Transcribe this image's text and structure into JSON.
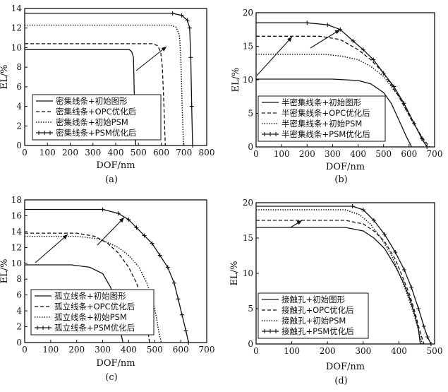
{
  "figure": {
    "background": "#ffffff",
    "ink": "#111111"
  },
  "chart_data": [
    {
      "type": "line",
      "panel_label": "(a)",
      "xlabel": "DOF/nm",
      "ylabel": "EL/%",
      "xlim": [
        0,
        800
      ],
      "ylim": [
        0,
        14
      ],
      "xticks": [
        0,
        100,
        200,
        300,
        400,
        500,
        600,
        700,
        800
      ],
      "yticks": [
        0,
        2,
        4,
        6,
        8,
        10,
        12,
        14
      ],
      "legend_position": "bottom-right",
      "series": [
        {
          "name": "密集线条+初始图形",
          "style": "solid",
          "marker": "none",
          "x": [
            0,
            460,
            470,
            478,
            482,
            488
          ],
          "y": [
            9.8,
            9.8,
            9.6,
            9.0,
            5.0,
            0
          ]
        },
        {
          "name": "密集线条+OPC优化后",
          "style": "dashed",
          "marker": "none",
          "x": [
            0,
            560,
            585,
            598,
            605,
            612,
            618
          ],
          "y": [
            10.4,
            10.4,
            10.2,
            9.5,
            8.0,
            4.0,
            0
          ]
        },
        {
          "name": "密集线条+初始PSM",
          "style": "dotted",
          "marker": "none",
          "x": [
            0,
            640,
            665,
            680,
            686,
            692,
            698
          ],
          "y": [
            12.3,
            12.3,
            12.1,
            11.3,
            9.0,
            4.0,
            0
          ]
        },
        {
          "name": "密集线条+PSM优化后",
          "style": "solid",
          "marker": "tick",
          "x": [
            0,
            650,
            690,
            715,
            725,
            730,
            734,
            738
          ],
          "y": [
            13.5,
            13.5,
            13.3,
            12.8,
            12.0,
            9.0,
            4.0,
            0
          ]
        }
      ]
    },
    {
      "type": "line",
      "panel_label": "(b)",
      "xlabel": "DOF/nm",
      "ylabel": "EL/%",
      "xlim": [
        0,
        700
      ],
      "ylim": [
        0,
        20
      ],
      "xticks": [
        0,
        100,
        200,
        300,
        400,
        500,
        600,
        700
      ],
      "yticks": [
        0,
        5,
        10,
        15,
        20
      ],
      "legend_position": "bottom-left",
      "series": [
        {
          "name": "半密集线条+初始图形",
          "style": "solid",
          "marker": "none",
          "x": [
            0,
            300,
            400,
            450,
            500,
            530,
            560,
            590,
            610
          ],
          "y": [
            10.1,
            10.1,
            9.9,
            9.4,
            8.1,
            6.5,
            4.0,
            1.5,
            0
          ]
        },
        {
          "name": "半密集线条+OPC优化后",
          "style": "dashed",
          "marker": "none",
          "x": [
            0,
            250,
            330,
            400,
            450,
            500,
            560,
            610,
            650,
            680
          ],
          "y": [
            16.5,
            16.5,
            16.0,
            14.5,
            13.0,
            11.0,
            7.5,
            4.0,
            1.5,
            0
          ]
        },
        {
          "name": "半密集线条+初始PSM",
          "style": "dotted",
          "marker": "none",
          "x": [
            0,
            270,
            340,
            400,
            450,
            500,
            560,
            610,
            650,
            670
          ],
          "y": [
            13.8,
            13.8,
            13.5,
            13.0,
            12.0,
            10.5,
            7.5,
            4.0,
            1.5,
            0
          ]
        },
        {
          "name": "半密集线条+PSM优化后",
          "style": "solid",
          "marker": "plus",
          "x": [
            0,
            200,
            280,
            330,
            380,
            420,
            460,
            500,
            540,
            580,
            620,
            650,
            670
          ],
          "y": [
            18.5,
            18.5,
            18.2,
            17.5,
            15.8,
            14.5,
            13.0,
            11.0,
            9.0,
            6.5,
            3.5,
            1.2,
            0
          ]
        }
      ]
    },
    {
      "type": "line",
      "panel_label": "(c)",
      "xlabel": "DOF/nm",
      "ylabel": "EL/%",
      "xlim": [
        0,
        700
      ],
      "ylim": [
        0,
        18
      ],
      "xticks": [
        0,
        100,
        200,
        300,
        400,
        500,
        600,
        700
      ],
      "yticks": [
        0,
        2,
        4,
        6,
        8,
        10,
        12,
        14,
        16,
        18
      ],
      "legend_position": "bottom-left",
      "series": [
        {
          "name": "孤立线条+初始图形",
          "style": "solid",
          "marker": "none",
          "x": [
            0,
            180,
            250,
            300,
            330,
            345,
            358,
            368,
            378
          ],
          "y": [
            9.8,
            9.8,
            9.5,
            8.7,
            7.0,
            5.5,
            3.5,
            1.5,
            0
          ]
        },
        {
          "name": "孤立线条+OPC优化后",
          "style": "dashed",
          "marker": "none",
          "x": [
            0,
            200,
            270,
            320,
            360,
            400,
            430,
            455,
            470,
            480
          ],
          "y": [
            13.8,
            13.8,
            13.4,
            12.5,
            11.3,
            9.5,
            7.5,
            5.0,
            2.5,
            0
          ]
        },
        {
          "name": "孤立线条+初始PSM",
          "style": "dotted",
          "marker": "none",
          "x": [
            0,
            200,
            280,
            320,
            360,
            400,
            440,
            470,
            490,
            505,
            515,
            525
          ],
          "y": [
            13.4,
            13.4,
            13.1,
            12.6,
            12.0,
            11.0,
            9.5,
            7.5,
            5.5,
            3.5,
            1.5,
            0
          ]
        },
        {
          "name": "孤立线条+PSM优化后",
          "style": "solid",
          "marker": "plus",
          "x": [
            0,
            300,
            360,
            400,
            430,
            460,
            490,
            520,
            550,
            575,
            590,
            605,
            620,
            630
          ],
          "y": [
            16.8,
            16.8,
            16.3,
            15.5,
            14.5,
            13.5,
            12.5,
            11.0,
            9.5,
            7.5,
            5.5,
            3.5,
            1.5,
            0
          ]
        }
      ]
    },
    {
      "type": "line",
      "panel_label": "(d)",
      "xlabel": "DOF/nm",
      "ylabel": "EL/%",
      "xlim": [
        0,
        500
      ],
      "ylim": [
        0,
        20
      ],
      "xticks": [
        0,
        100,
        200,
        300,
        400,
        500
      ],
      "yticks": [
        0,
        5,
        10,
        15,
        20
      ],
      "legend_position": "bottom-left",
      "series": [
        {
          "name": "接触孔+初始图形",
          "style": "solid",
          "marker": "none",
          "x": [
            0,
            250,
            300,
            330,
            360,
            390,
            410,
            430,
            445,
            455,
            460
          ],
          "y": [
            16.5,
            16.5,
            16.0,
            15.0,
            13.5,
            11.0,
            9.0,
            6.5,
            4.0,
            2.0,
            0
          ]
        },
        {
          "name": "接触孔+OPC优化后",
          "style": "dashed",
          "marker": "none",
          "x": [
            0,
            250,
            300,
            330,
            360,
            390,
            410,
            430,
            445,
            455,
            470
          ],
          "y": [
            17.5,
            17.5,
            17.0,
            16.0,
            14.5,
            12.0,
            9.5,
            7.0,
            4.5,
            2.5,
            0
          ]
        },
        {
          "name": "接触孔+初始PSM",
          "style": "dotted",
          "marker": "none",
          "x": [
            0,
            250,
            290,
            320,
            350,
            380,
            400,
            420,
            440,
            455,
            465
          ],
          "y": [
            19.0,
            19.0,
            18.3,
            17.0,
            15.0,
            12.5,
            10.0,
            7.5,
            4.5,
            2.0,
            0
          ]
        },
        {
          "name": "接触孔+PSM优化后",
          "style": "solid",
          "marker": "plus",
          "x": [
            0,
            270,
            300,
            330,
            360,
            390,
            415,
            435,
            455,
            470,
            480,
            490
          ],
          "y": [
            19.5,
            19.5,
            19.0,
            17.5,
            15.5,
            13.0,
            10.5,
            8.0,
            5.0,
            2.5,
            1.0,
            0
          ]
        }
      ]
    }
  ]
}
